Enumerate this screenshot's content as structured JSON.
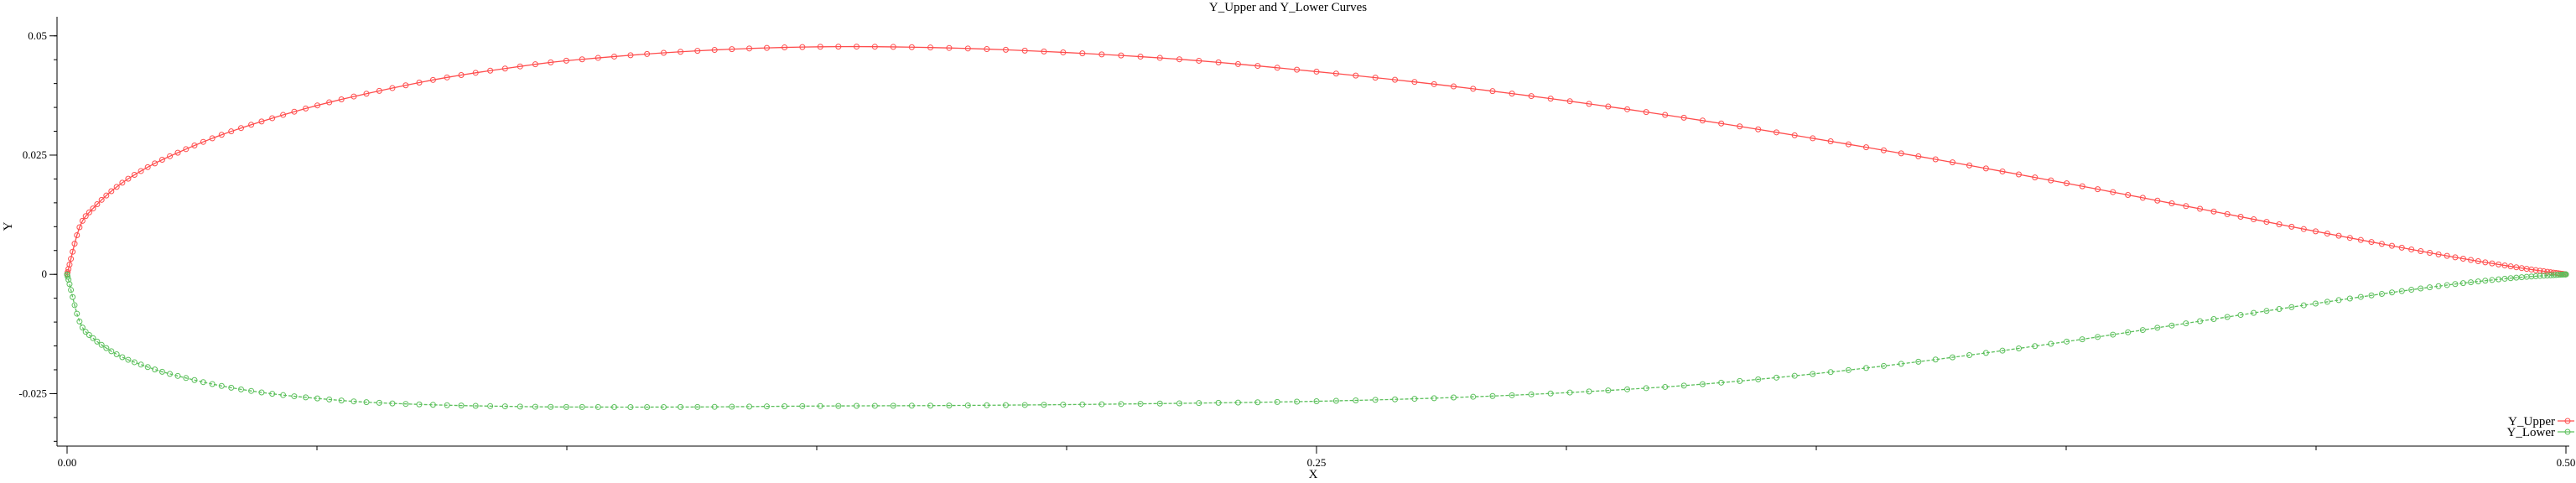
{
  "chart_data": {
    "type": "line",
    "title": "Y_Upper and Y_Lower Curves",
    "xlabel": "X",
    "ylabel": "Y",
    "xlim": [
      0,
      0.5
    ],
    "ylim": [
      -0.036,
      0.054
    ],
    "x_ticks": [
      {
        "value": 0,
        "label": "0.00"
      },
      {
        "value": 0.25,
        "label": "0.25"
      },
      {
        "value": 0.5,
        "label": "0.50"
      }
    ],
    "y_ticks": [
      {
        "value": 0.05,
        "label": "0.05"
      },
      {
        "value": 0.025,
        "label": "0.025"
      },
      {
        "value": 0,
        "label": "0"
      },
      {
        "value": -0.025,
        "label": "-0.025"
      }
    ],
    "x_minor_step": 0.05,
    "y_minor_step": 0.005,
    "grid": false,
    "legend_position": "bottom-right",
    "series": [
      {
        "name": "Y_Upper",
        "color": "#ff4d4d",
        "marker": "circle",
        "x": [
          0,
          0.0025,
          0.005,
          0.01,
          0.015,
          0.02,
          0.03,
          0.04,
          0.05,
          0.06,
          0.075,
          0.09,
          0.1,
          0.125,
          0.15,
          0.175,
          0.2,
          0.225,
          0.25,
          0.275,
          0.3,
          0.325,
          0.35,
          0.375,
          0.4,
          0.425,
          0.45,
          0.475,
          0.49,
          0.5
        ],
        "values": [
          0,
          0.0099,
          0.0136,
          0.0184,
          0.0218,
          0.0245,
          0.0289,
          0.0324,
          0.0354,
          0.0379,
          0.0411,
          0.0435,
          0.0448,
          0.0468,
          0.0477,
          0.0475,
          0.0465,
          0.0449,
          0.0425,
          0.0397,
          0.0364,
          0.0326,
          0.0284,
          0.0239,
          0.0191,
          0.0141,
          0.009,
          0.0041,
          0.0015,
          0.0
        ]
      },
      {
        "name": "Y_Lower",
        "color": "#5cc05c",
        "marker": "circle",
        "x": [
          0,
          0.0025,
          0.005,
          0.01,
          0.015,
          0.02,
          0.03,
          0.04,
          0.05,
          0.06,
          0.075,
          0.09,
          0.1,
          0.125,
          0.15,
          0.175,
          0.2,
          0.225,
          0.25,
          0.275,
          0.3,
          0.325,
          0.35,
          0.375,
          0.4,
          0.425,
          0.45,
          0.475,
          0.49,
          0.5
        ],
        "values": [
          0,
          -0.0099,
          -0.0132,
          -0.0168,
          -0.019,
          -0.0207,
          -0.0232,
          -0.0249,
          -0.026,
          -0.0268,
          -0.0274,
          -0.0277,
          -0.0278,
          -0.0278,
          -0.0276,
          -0.0275,
          -0.0273,
          -0.027,
          -0.0266,
          -0.0259,
          -0.0248,
          -0.0232,
          -0.0208,
          -0.0177,
          -0.0141,
          -0.0101,
          -0.0061,
          -0.0024,
          -0.0007,
          0.0
        ]
      }
    ]
  }
}
